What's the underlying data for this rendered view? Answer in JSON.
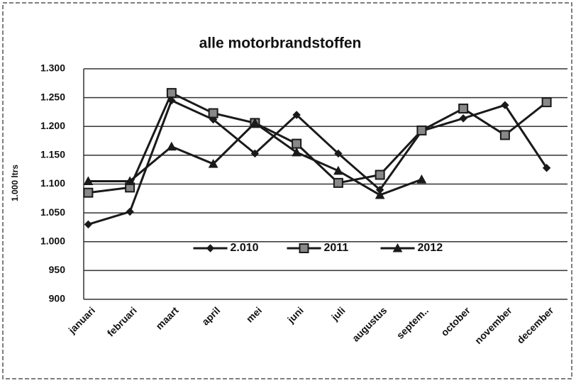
{
  "chart_data": {
    "type": "line",
    "title": "alle motorbrandstoffen",
    "y_label": "1.000 ltrs",
    "categories": [
      "januari",
      "februari",
      "maart",
      "april",
      "mei",
      "juni",
      "juli",
      "augustus",
      "septem..",
      "october",
      "november",
      "december"
    ],
    "series": [
      {
        "name": "2.010",
        "color": "#1a1a1a",
        "marker": "diamond",
        "values": [
          1030,
          1052,
          1245,
          1212,
          1153,
          1220,
          1153,
          1090,
          1192,
          1214,
          1237,
          1128
        ]
      },
      {
        "name": "2011",
        "color": "#1a1a1a",
        "marker": "square",
        "values": [
          1085,
          1094,
          1258,
          1223,
          1206,
          1170,
          1102,
          1116,
          1193,
          1231,
          1185,
          1242
        ]
      },
      {
        "name": "2012",
        "color": "#1a1a1a",
        "marker": "triangle",
        "values": [
          1105,
          1105,
          1165,
          1135,
          1206,
          1155,
          1123,
          1081,
          1108,
          null,
          null,
          null
        ]
      }
    ],
    "ylim": [
      900,
      1300
    ],
    "yticks": [
      900,
      950,
      {
        "value": 1000,
        "label": "1.000"
      },
      {
        "value": 1050,
        "label": "1.050"
      },
      {
        "value": 1100,
        "label": "1.100"
      },
      {
        "value": 1150,
        "label": "1.150"
      },
      {
        "value": 1200,
        "label": "1.200"
      },
      {
        "value": 1250,
        "label": "1.250"
      },
      {
        "value": 1300,
        "label": "1.300"
      }
    ],
    "grid": true,
    "legend": "center"
  }
}
